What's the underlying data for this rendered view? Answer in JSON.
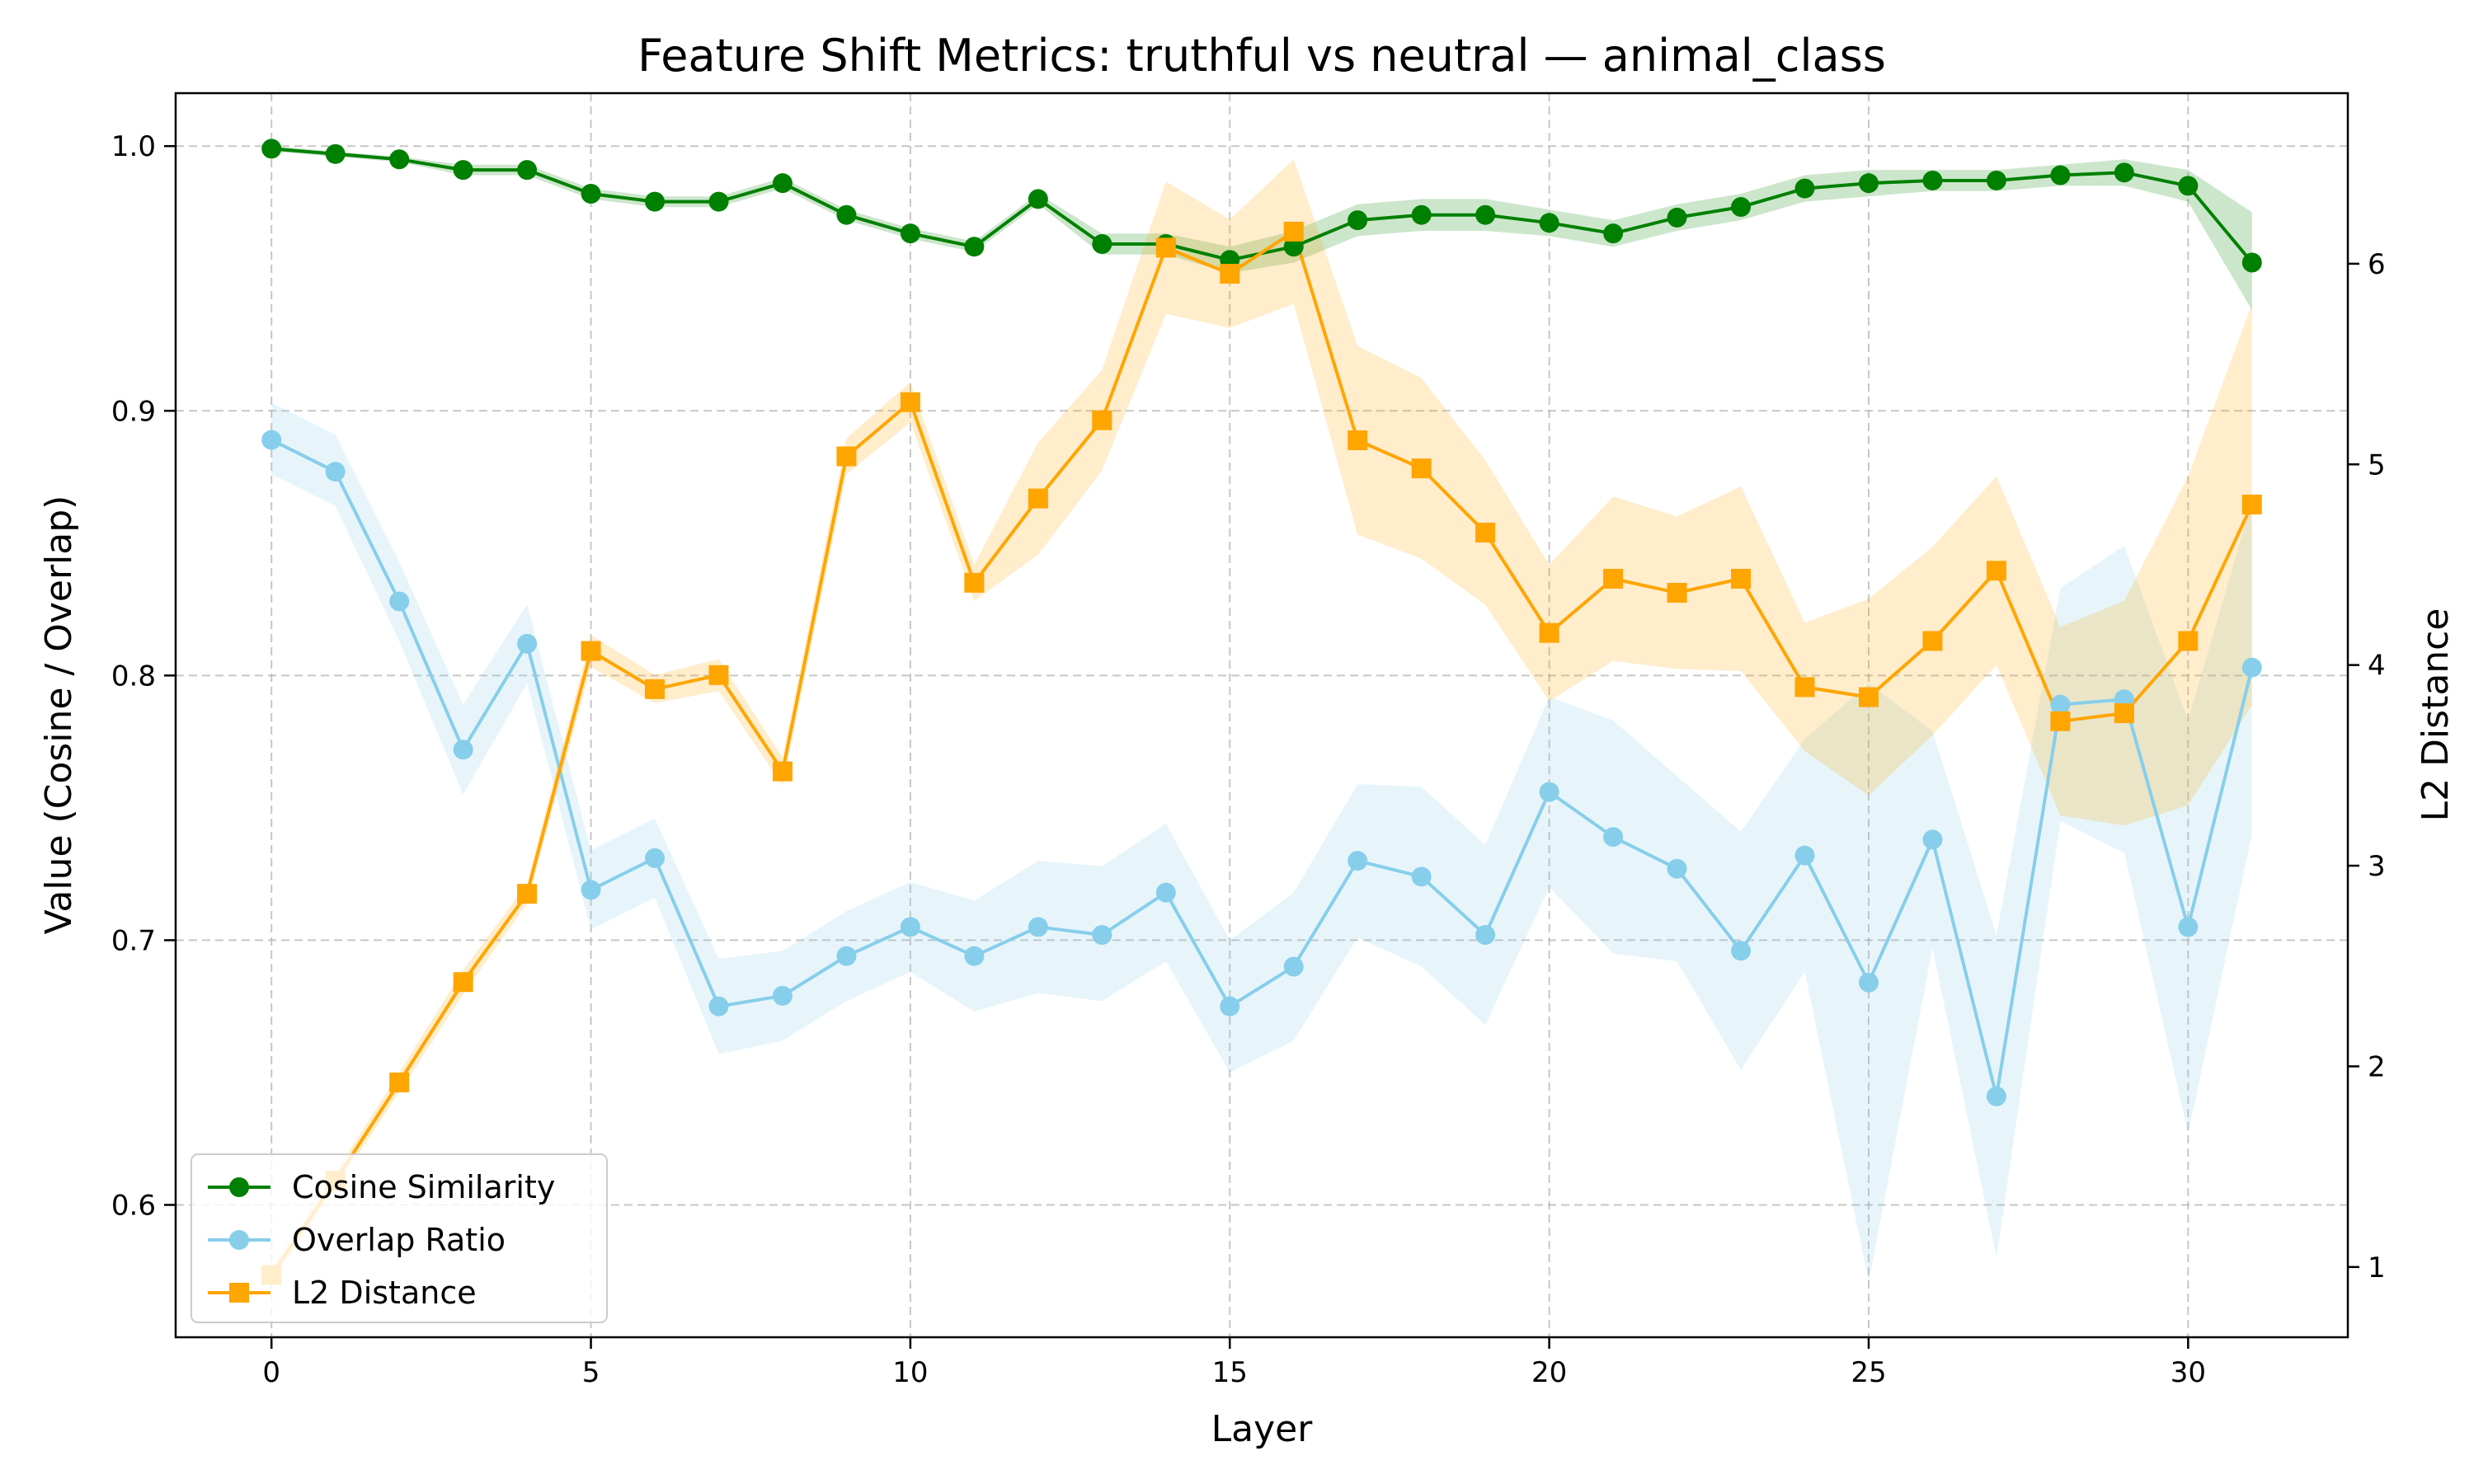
{
  "chart_data": {
    "type": "line",
    "title": "Feature Shift Metrics: truthful vs neutral — animal_class",
    "xlabel": "Layer",
    "ylabel_left": "Value (Cosine / Overlap)",
    "ylabel_right": "L2 Distance",
    "xlim": [
      -1.5,
      32.5
    ],
    "ylim_left": [
      0.55,
      1.02
    ],
    "ylim_right": [
      0.65,
      6.85
    ],
    "xticks": [
      0,
      5,
      10,
      15,
      20,
      25,
      30
    ],
    "yticks_left": [
      0.6,
      0.7,
      0.8,
      0.9,
      1.0
    ],
    "yticks_right": [
      1,
      2,
      3,
      4,
      5,
      6
    ],
    "grid": true,
    "legend_position": "lower-left",
    "x": [
      0,
      1,
      2,
      3,
      4,
      5,
      6,
      7,
      8,
      9,
      10,
      11,
      12,
      13,
      14,
      15,
      16,
      17,
      18,
      19,
      20,
      21,
      22,
      23,
      24,
      25,
      26,
      27,
      28,
      29,
      30,
      31
    ],
    "series": [
      {
        "name": "Cosine Similarity",
        "axis": "left",
        "color": "#008000",
        "marker": "circle",
        "values": [
          0.999,
          0.997,
          0.995,
          0.991,
          0.991,
          0.982,
          0.979,
          0.979,
          0.986,
          0.974,
          0.967,
          0.962,
          0.98,
          0.963,
          0.963,
          0.957,
          0.962,
          0.972,
          0.974,
          0.974,
          0.971,
          0.967,
          0.973,
          0.977,
          0.984,
          0.986,
          0.987,
          0.987,
          0.989,
          0.99,
          0.985,
          0.956
        ],
        "lower": [
          0.998,
          0.996,
          0.994,
          0.989,
          0.989,
          0.98,
          0.977,
          0.977,
          0.984,
          0.972,
          0.965,
          0.96,
          0.978,
          0.959,
          0.959,
          0.952,
          0.956,
          0.966,
          0.968,
          0.968,
          0.966,
          0.962,
          0.968,
          0.972,
          0.979,
          0.981,
          0.983,
          0.983,
          0.985,
          0.985,
          0.979,
          0.938
        ],
        "upper": [
          1.0,
          0.998,
          0.996,
          0.993,
          0.993,
          0.984,
          0.981,
          0.981,
          0.988,
          0.976,
          0.969,
          0.964,
          0.982,
          0.967,
          0.967,
          0.962,
          0.968,
          0.978,
          0.98,
          0.98,
          0.976,
          0.972,
          0.978,
          0.982,
          0.989,
          0.991,
          0.991,
          0.991,
          0.993,
          0.995,
          0.991,
          0.975
        ]
      },
      {
        "name": "Overlap Ratio",
        "axis": "left",
        "color": "#87CEEB",
        "marker": "circle",
        "values": [
          0.889,
          0.877,
          0.828,
          0.772,
          0.812,
          0.719,
          0.731,
          0.675,
          0.679,
          0.694,
          0.705,
          0.694,
          0.705,
          0.702,
          0.718,
          0.675,
          0.69,
          0.73,
          0.724,
          0.702,
          0.756,
          0.739,
          0.727,
          0.696,
          0.732,
          0.684,
          0.738,
          0.641,
          0.789,
          0.791,
          0.705,
          0.803
        ],
        "lower": [
          0.876,
          0.864,
          0.813,
          0.755,
          0.797,
          0.704,
          0.716,
          0.657,
          0.662,
          0.677,
          0.688,
          0.673,
          0.68,
          0.677,
          0.692,
          0.65,
          0.662,
          0.701,
          0.69,
          0.668,
          0.72,
          0.695,
          0.692,
          0.651,
          0.688,
          0.571,
          0.697,
          0.58,
          0.745,
          0.733,
          0.627,
          0.74
        ],
        "upper": [
          0.903,
          0.891,
          0.843,
          0.789,
          0.827,
          0.734,
          0.746,
          0.693,
          0.696,
          0.711,
          0.722,
          0.715,
          0.73,
          0.728,
          0.744,
          0.7,
          0.718,
          0.759,
          0.758,
          0.736,
          0.792,
          0.783,
          0.762,
          0.741,
          0.776,
          0.797,
          0.779,
          0.702,
          0.833,
          0.849,
          0.783,
          0.866
        ]
      },
      {
        "name": "L2 Distance",
        "axis": "right",
        "color": "#FFA500",
        "marker": "square",
        "values": [
          0.96,
          1.43,
          1.92,
          2.42,
          2.86,
          4.07,
          3.88,
          3.95,
          3.47,
          5.04,
          5.31,
          4.41,
          4.83,
          5.22,
          6.08,
          5.95,
          6.16,
          5.12,
          4.98,
          4.66,
          4.16,
          4.43,
          4.36,
          4.43,
          3.89,
          3.84,
          4.12,
          4.47,
          3.72,
          3.76,
          4.12,
          4.8
        ],
        "lower": [
          0.92,
          1.39,
          1.87,
          2.36,
          2.81,
          3.99,
          3.81,
          3.87,
          3.4,
          4.95,
          5.21,
          4.32,
          4.55,
          4.97,
          5.75,
          5.68,
          5.8,
          4.65,
          4.53,
          4.3,
          3.82,
          4.02,
          3.98,
          3.97,
          3.57,
          3.35,
          3.65,
          4.0,
          3.25,
          3.2,
          3.3,
          3.8
        ],
        "upper": [
          1.0,
          1.47,
          1.97,
          2.48,
          2.91,
          4.15,
          3.95,
          4.03,
          3.54,
          5.13,
          5.41,
          4.5,
          5.11,
          5.47,
          6.41,
          6.22,
          6.52,
          5.59,
          5.43,
          5.02,
          4.5,
          4.84,
          4.74,
          4.89,
          4.21,
          4.33,
          4.59,
          4.94,
          4.19,
          4.32,
          4.94,
          5.8
        ]
      }
    ]
  }
}
